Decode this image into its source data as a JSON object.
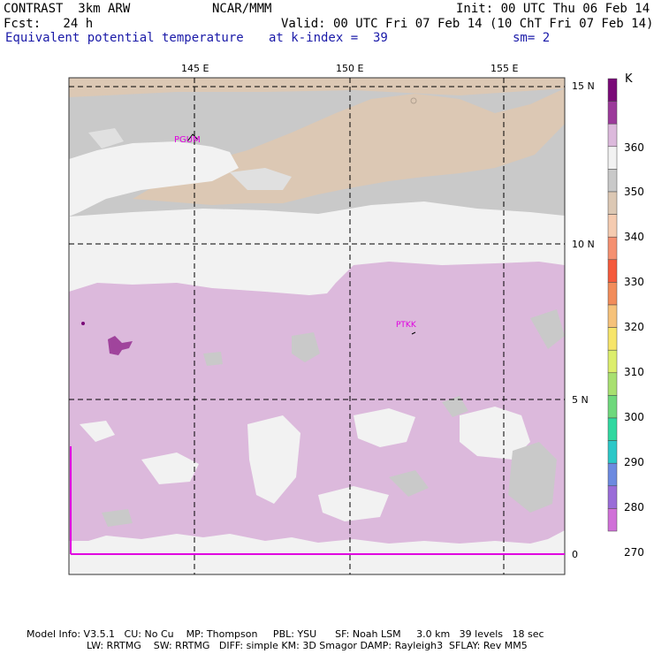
{
  "header": {
    "model": "CONTRAST  3km ARW",
    "center": "NCAR/MMM",
    "init": "Init: 00 UTC Thu 06 Feb 14",
    "fcst": "Fcst:   24 h",
    "valid": "Valid: 00 UTC Fri 07 Feb 14 (10 ChT Fri 07 Feb 14)",
    "field": "Equivalent potential temperature",
    "level": "at k-index =  39",
    "smooth": "sm= 2"
  },
  "map": {
    "lon_labels": [
      "145 E",
      "150 E",
      "155 E"
    ],
    "lat_labels": [
      "15 N",
      "10 N",
      "5 N",
      "0"
    ],
    "stations": [
      "PGUM",
      "PTKK"
    ],
    "colors": {
      "tan": "#dcc8b4",
      "gray": "#c9c9c9",
      "lightgray": "#e0e0e0",
      "white": "#f2f2f2",
      "lavender": "#dcb9dc",
      "purple": "#a0449c",
      "magenta": "#e000e0"
    }
  },
  "legend": {
    "unit": "K",
    "labels": [
      "360",
      "350",
      "340",
      "330",
      "320",
      "310",
      "300",
      "290",
      "280",
      "270"
    ],
    "colors": [
      "#7a0a78",
      "#9b3a9a",
      "#dcb9dc",
      "#f2f2f2",
      "#c9c9c9",
      "#dcc8b4",
      "#f5cbb0",
      "#f59070",
      "#f55a3c",
      "#f28c5a",
      "#f6c27a",
      "#f7e56a",
      "#dcee6c",
      "#a8e070",
      "#6ed87c",
      "#30d8a0",
      "#2cc8c8",
      "#6c8ae0",
      "#9a6cd8",
      "#d070d8"
    ]
  },
  "footer": {
    "line1": "Model Info: V3.5.1   CU: No Cu    MP: Thompson     PBL: YSU      SF: Noah LSM     3.0 km   39 levels   18 sec",
    "line2": "LW: RRTMG    SW: RRTMG   DIFF: simple KM: 3D Smagor DAMP: Rayleigh3  SFLAY: Rev MM5"
  }
}
